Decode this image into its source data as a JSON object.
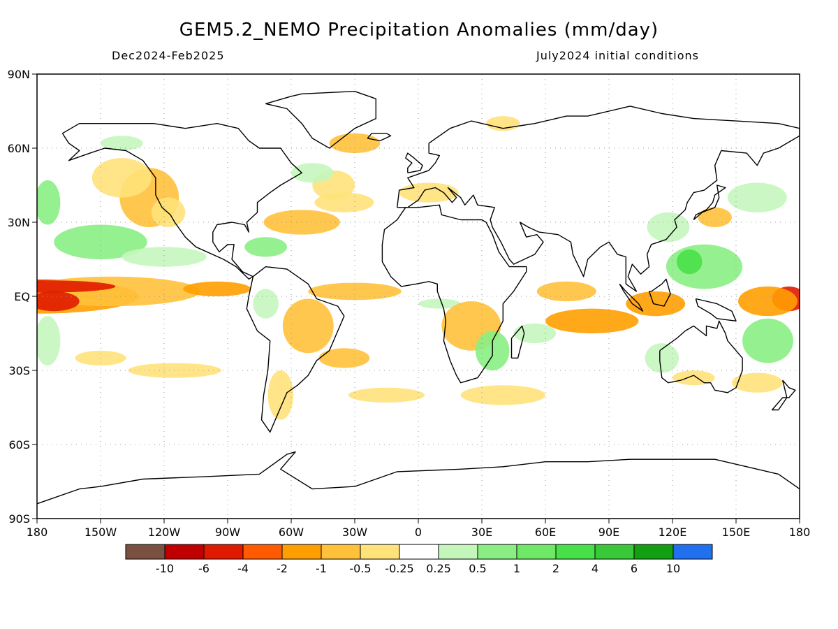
{
  "title": "GEM5.2_NEMO Precipitation Anomalies (mm/day)",
  "subtitle_left": "Dec2024-Feb2025",
  "subtitle_right": "July2024 initial conditions",
  "map": {
    "projection": "equirectangular",
    "lon_range": [
      -180,
      180
    ],
    "lat_range": [
      -90,
      90
    ],
    "grid": "dotted",
    "lat_labels": [
      "90N",
      "60N",
      "30N",
      "EQ",
      "30S",
      "60S",
      "90S"
    ],
    "lon_labels": [
      "180",
      "150W",
      "120W",
      "90W",
      "60W",
      "30W",
      "0",
      "30E",
      "60E",
      "90E",
      "120E",
      "150E",
      "180"
    ]
  },
  "legend": {
    "colors": [
      "#7a5040",
      "#c00000",
      "#e01a00",
      "#ff5a00",
      "#ff9e00",
      "#ffc13a",
      "#ffe27a",
      "#ffffff",
      "#c4f6bc",
      "#8aee84",
      "#6fe868",
      "#48e048",
      "#38c838",
      "#12a012",
      "#2070f0"
    ],
    "labels": [
      "-10",
      "-6",
      "-4",
      "-2",
      "-1",
      "-0.5",
      "-0.25",
      "0.25",
      "0.5",
      "1",
      "2",
      "4",
      "6",
      "10"
    ]
  },
  "palette": {
    "dry_strong": "#ff9e00",
    "dry_mid": "#ffc13a",
    "dry_light": "#ffe27a",
    "dry_extreme": "#e01a00",
    "wet_light": "#c4f6bc",
    "wet_mid": "#8aee84",
    "wet_strong": "#48e048"
  }
}
